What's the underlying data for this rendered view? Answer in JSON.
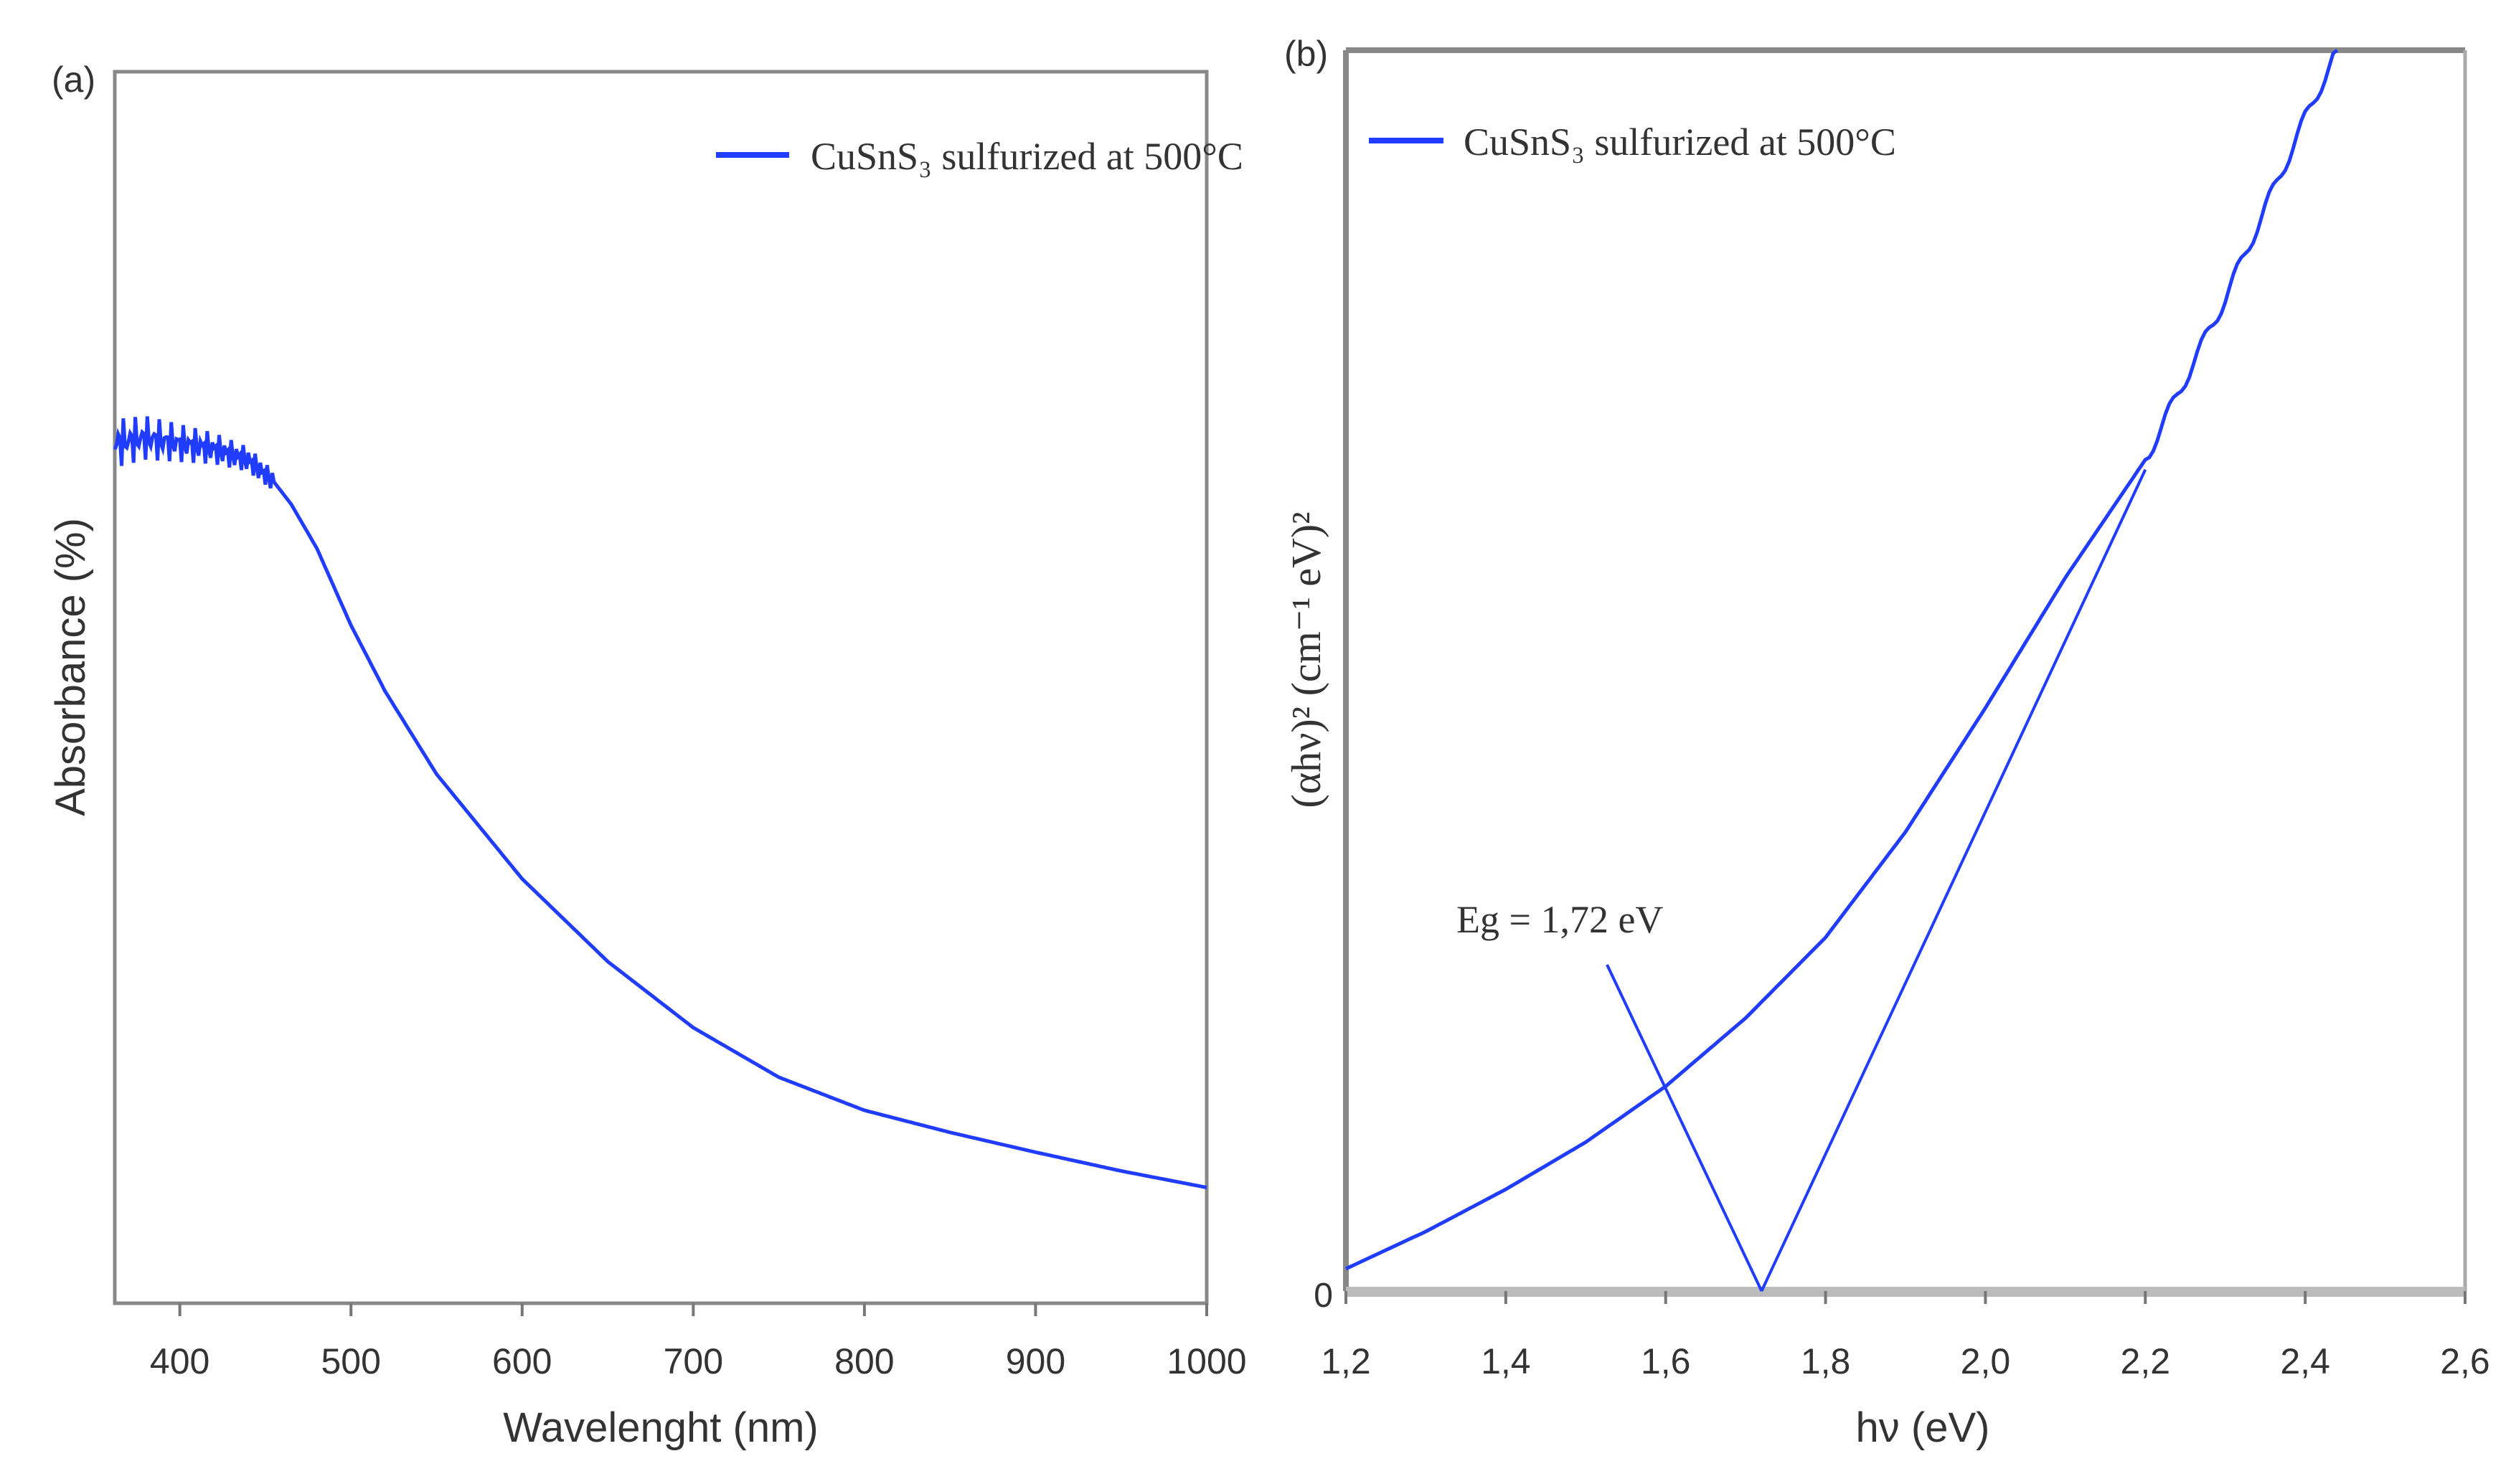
{
  "colors": {
    "series": "#1f3cff",
    "axis": "#777777",
    "frame_gray": "#bbbbbb",
    "text": "#333333"
  },
  "chart_data": [
    {
      "panel_label": "(a)",
      "type": "line",
      "title": "",
      "xlabel": "Wavelenght (nm)",
      "ylabel": "Absorbance (%)",
      "xlim": [
        362,
        1000
      ],
      "ylim": [
        0,
        1
      ],
      "xticks": [
        400,
        500,
        600,
        700,
        800,
        900,
        1000
      ],
      "xtick_labels": [
        "400",
        "500",
        "600",
        "700",
        "800",
        "900",
        "1000"
      ],
      "yticks": [],
      "legend": {
        "label": "CuSnS₃ sulfurized at 500°C",
        "position": "top-right"
      },
      "series": [
        {
          "name": "CuSnS₃ sulfurized at 500°C",
          "noisy_until": 455,
          "x": [
            362,
            380,
            400,
            420,
            440,
            455,
            465,
            480,
            500,
            520,
            550,
            600,
            650,
            700,
            750,
            800,
            850,
            900,
            950,
            1000
          ],
          "y": [
            0.78,
            0.785,
            0.78,
            0.775,
            0.765,
            0.745,
            0.725,
            0.685,
            0.615,
            0.555,
            0.48,
            0.385,
            0.31,
            0.25,
            0.205,
            0.175,
            0.155,
            0.137,
            0.12,
            0.105
          ]
        }
      ]
    },
    {
      "panel_label": "(b)",
      "type": "line",
      "title": "",
      "xlabel": "hν (eV)",
      "ylabel": "(αhν)² (cm⁻¹ eV)²",
      "xlim": [
        1.2,
        2.6
      ],
      "ylim": [
        0,
        1
      ],
      "xticks": [
        1.2,
        1.4,
        1.6,
        1.8,
        2.0,
        2.2,
        2.4,
        2.6
      ],
      "xtick_labels": [
        "1,2",
        "1,4",
        "1,6",
        "1,8",
        "2,0",
        "2,2",
        "2,4",
        "2,6"
      ],
      "ytick_labels": [
        "0"
      ],
      "legend": {
        "label": "CuSnS₃ sulfurized at 500°C",
        "position": "top-left"
      },
      "annotation": {
        "text": "Eg = 1,72 eV",
        "x": 1.72,
        "y": 0
      },
      "tangent_line": {
        "x": [
          1.72,
          2.2
        ],
        "y": [
          0,
          0.662
        ]
      },
      "series": [
        {
          "name": "CuSnS₃ sulfurized at 500°C",
          "x": [
            1.2,
            1.3,
            1.4,
            1.5,
            1.6,
            1.7,
            1.8,
            1.9,
            2.0,
            2.1,
            2.2,
            2.3,
            2.4,
            2.44
          ],
          "y": [
            0.018,
            0.048,
            0.082,
            0.12,
            0.165,
            0.22,
            0.285,
            0.37,
            0.47,
            0.575,
            0.67,
            0.8,
            0.945,
            1.0
          ]
        }
      ]
    }
  ]
}
